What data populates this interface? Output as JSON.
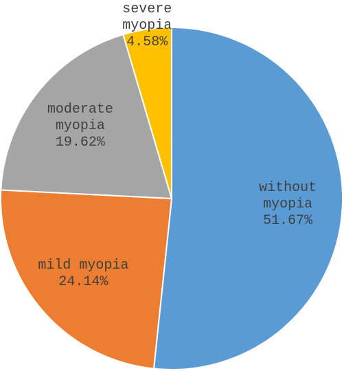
{
  "chart_data": {
    "type": "pie",
    "categories": [
      "without myopia",
      "mild myopia",
      "moderate myopia",
      "severe myopia"
    ],
    "values": [
      51.67,
      24.14,
      19.62,
      4.58
    ],
    "value_labels": [
      "51.67%",
      "24.14%",
      "19.62%",
      "4.58%"
    ],
    "colors": [
      "#5b9bd5",
      "#ed7d31",
      "#a5a5a5",
      "#ffc000"
    ]
  }
}
